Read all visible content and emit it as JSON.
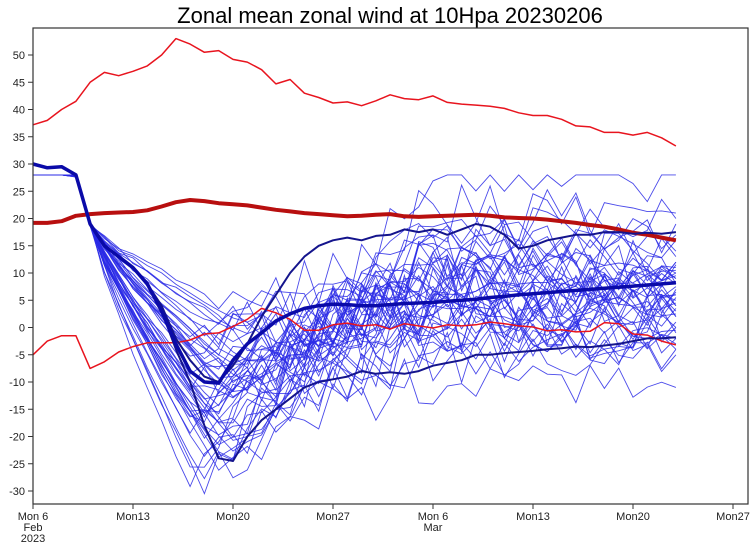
{
  "chart_data": {
    "type": "line",
    "title": "Zonal mean zonal wind at 10Hpa 20230206",
    "xlabel": "",
    "ylabel": "",
    "ylim": [
      -32.5,
      54.5
    ],
    "xlim_days": [
      0,
      50
    ],
    "yticks": [
      50,
      45,
      40,
      35,
      30,
      25,
      20,
      15,
      10,
      5,
      0,
      -5,
      -10,
      -15,
      -20,
      -25,
      -30
    ],
    "xticks": [
      {
        "day": 0,
        "lines": [
          "Mon 6",
          "Feb",
          "2023"
        ]
      },
      {
        "day": 7,
        "lines": [
          "Mon13"
        ]
      },
      {
        "day": 14,
        "lines": [
          "Mon20"
        ]
      },
      {
        "day": 21,
        "lines": [
          "Mon27"
        ]
      },
      {
        "day": 28,
        "lines": [
          "Mon 6",
          "Mar"
        ]
      },
      {
        "day": 35,
        "lines": [
          "Mon13"
        ]
      },
      {
        "day": 42,
        "lines": [
          "Mon20"
        ]
      },
      {
        "day": 49,
        "lines": [
          "Mon27"
        ]
      }
    ],
    "grid": false,
    "colors": {
      "clim_extreme": "#e8141e",
      "clim_mean": "#b80f0f",
      "ensemble_member": "#2a2ae6",
      "ensemble_mean": "#0a0aa8",
      "highlight_member": "#14148c"
    },
    "series": [
      {
        "name": "climatology-max",
        "style": "clim_extreme",
        "width": 1.5,
        "values": [
          37.2,
          38,
          40,
          41.5,
          45,
          46.8,
          46.2,
          47,
          48,
          50,
          53,
          52,
          50.5,
          50.8,
          49.2,
          48.7,
          47.3,
          44.7,
          45.5,
          43,
          42.2,
          41.2,
          41.4,
          40.7,
          41.6,
          42.7,
          42,
          41.8,
          42.5,
          41.3,
          41,
          40.8,
          40.6,
          40.2,
          39.4,
          38.9,
          38.9,
          38.2,
          37,
          36.8,
          35.8,
          35.8,
          35.3,
          35.8,
          34.8,
          33.3
        ]
      },
      {
        "name": "climatology-mean",
        "style": "clim_mean",
        "width": 4,
        "values": [
          19.2,
          19.2,
          19.5,
          20.5,
          20.8,
          21,
          21.1,
          21.2,
          21.5,
          22.2,
          23,
          23.4,
          23.2,
          22.8,
          22.6,
          22.4,
          22,
          21.6,
          21.3,
          21,
          20.8,
          20.6,
          20.4,
          20.5,
          20.7,
          20.8,
          20.4,
          20.3,
          20.4,
          20.5,
          20.6,
          20.7,
          20.5,
          20.2,
          20.1,
          20,
          19.8,
          19.5,
          19.2,
          18.8,
          18.5,
          18,
          17.4,
          17,
          16.5,
          16
        ]
      },
      {
        "name": "climatology-min",
        "style": "clim_extreme",
        "width": 1.5,
        "values": [
          -5,
          -2.5,
          -1.5,
          -1.5,
          -7.5,
          -6.3,
          -4.5,
          -3.5,
          -2.8,
          -2.8,
          -2.8,
          -2.3,
          -1.2,
          -1,
          0.2,
          1.5,
          3.5,
          2.7,
          1.5,
          -0.5,
          -0.5,
          0.5,
          0.8,
          0.3,
          0.5,
          -0.3,
          0.7,
          0.3,
          -0.1,
          0.5,
          0.3,
          0.5,
          1,
          0.7,
          0.3,
          0.1,
          -0.6,
          -0.4,
          -0.8,
          -0.7,
          0.9,
          0.7,
          -1.2,
          -1.4,
          -2.5,
          -3.2
        ]
      },
      {
        "name": "member-high",
        "style": "highlight_member",
        "width": 2,
        "values": [
          30,
          29.3,
          29.5,
          28,
          19,
          15,
          13,
          11,
          8,
          4,
          -2,
          -6,
          -9,
          -10,
          -7,
          -3,
          2,
          6,
          10,
          13,
          15,
          16,
          16.5,
          16,
          16.8,
          17,
          18,
          17.5,
          18,
          17,
          18,
          19,
          18.5,
          17,
          14.5,
          15,
          16,
          16.5,
          17,
          17,
          17.5,
          17.5,
          17.2,
          17.4,
          17.2,
          17.5
        ]
      },
      {
        "name": "member-low",
        "style": "highlight_member",
        "width": 2,
        "values": [
          30,
          29.3,
          29.5,
          28,
          19,
          15,
          13,
          11,
          8,
          3,
          -4,
          -10,
          -18,
          -24,
          -24.5,
          -20,
          -17,
          -15,
          -13,
          -11,
          -10,
          -9.5,
          -9,
          -8,
          -8.5,
          -8.2,
          -8.5,
          -8,
          -7,
          -6.5,
          -6,
          -5,
          -5,
          -4.7,
          -4.5,
          -4.3,
          -4,
          -3.8,
          -3.5,
          -3.6,
          -3.3,
          -3,
          -2.5,
          -2,
          -2,
          -1.8
        ]
      },
      {
        "name": "ensemble-mean",
        "style": "ensemble_mean",
        "width": 3.5,
        "values": [
          30,
          29.3,
          29.5,
          28,
          19,
          15,
          13,
          11,
          8,
          3,
          -3,
          -8,
          -10,
          -10.2,
          -6,
          -3,
          -1,
          1.2,
          2.5,
          3.5,
          4,
          4.3,
          4.2,
          4,
          4,
          4.2,
          4.4,
          4.5,
          4.6,
          4.8,
          5,
          5.2,
          5.5,
          5.7,
          6,
          6.2,
          6.4,
          6.6,
          6.8,
          7,
          7.2,
          7.4,
          7.6,
          7.8,
          8,
          8.2
        ]
      }
    ],
    "ensemble": {
      "member_count": 48,
      "common_start": [
        30,
        29.3,
        29.5,
        28,
        19
      ],
      "trough_day_range": [
        11,
        14
      ],
      "trough_values": [
        -30,
        -29,
        -28,
        -27,
        -25,
        -24,
        -23,
        -22,
        -20,
        -19,
        -18,
        -17,
        -16,
        -15,
        -14,
        -13,
        -12,
        -11,
        -10,
        -9,
        -8,
        -7,
        -6,
        -5,
        -4,
        -3,
        -2,
        -1,
        0,
        1,
        2,
        -26,
        -21,
        -18,
        -14,
        -12,
        -8,
        -5,
        -3,
        1,
        2,
        -20,
        -16,
        -11,
        -9,
        -6,
        6,
        -24
      ],
      "end_values": [
        28,
        21,
        20,
        19,
        17,
        16,
        14,
        13,
        12,
        11.5,
        11,
        10.5,
        10,
        9.5,
        9,
        8.5,
        8,
        7.5,
        7,
        6.5,
        6,
        5.5,
        5,
        4.5,
        4,
        3.5,
        3,
        2.5,
        2,
        1,
        0,
        -1,
        -2,
        -3,
        -4,
        -5,
        -11,
        12,
        10,
        8,
        6,
        4,
        2,
        0,
        -2,
        -4,
        9,
        -0.5
      ],
      "extremes_note_values": [
        27,
        26.5,
        -23,
        -20
      ]
    }
  }
}
